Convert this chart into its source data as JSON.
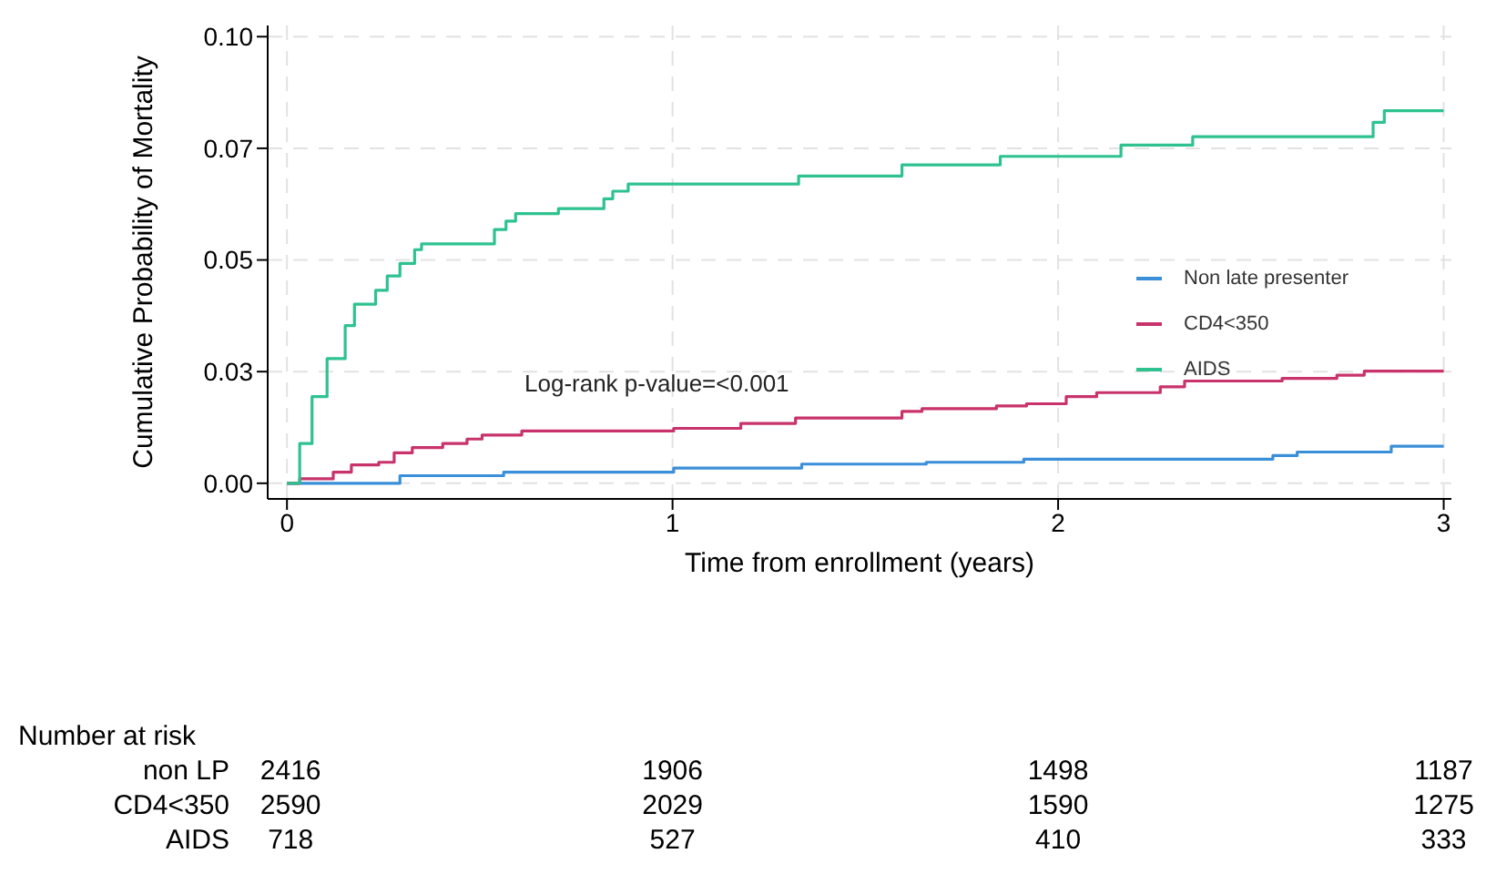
{
  "chart_data": {
    "type": "step",
    "ylabel": "Cumulative Probability of Mortality",
    "xlabel": "Time from enrollment (years)",
    "xlim": [
      -0.05,
      3.02
    ],
    "xticks": [
      0,
      1,
      2,
      3
    ],
    "ylim": [
      -0.0035,
      0.1025
    ],
    "yticks": [
      {
        "value": 0,
        "label": "0.00"
      },
      {
        "value": 0.025,
        "label": "0.03"
      },
      {
        "value": 0.05,
        "label": "0.05"
      },
      {
        "value": 0.075,
        "label": "0.07"
      },
      {
        "value": 0.1,
        "label": "0.10"
      }
    ],
    "grid": true,
    "legend": "right",
    "series": [
      {
        "name": "Non late presenter",
        "color": "#3a8fd9",
        "x": [
          0,
          0.293,
          0.562,
          1.003,
          1.335,
          1.658,
          1.911,
          2.557,
          2.62,
          2.864,
          3.0
        ],
        "values": [
          0,
          0.0017,
          0.0025,
          0.0034,
          0.0043,
          0.0047,
          0.0054,
          0.0062,
          0.007,
          0.0083,
          0.0083
        ]
      },
      {
        "name": "CD4<350",
        "color": "#c8336b",
        "x": [
          0,
          0.033,
          0.12,
          0.167,
          0.238,
          0.278,
          0.325,
          0.404,
          0.467,
          0.506,
          0.609,
          1.003,
          1.177,
          1.319,
          1.595,
          1.647,
          1.84,
          1.918,
          2.021,
          2.1,
          2.265,
          2.328,
          2.581,
          2.723,
          2.794,
          3.0
        ],
        "values": [
          0,
          0.001,
          0.0025,
          0.0041,
          0.0047,
          0.0068,
          0.008,
          0.0089,
          0.0099,
          0.0108,
          0.0117,
          0.0123,
          0.0134,
          0.0146,
          0.0161,
          0.0167,
          0.0173,
          0.0178,
          0.0194,
          0.0203,
          0.0216,
          0.0229,
          0.0235,
          0.0242,
          0.0251,
          0.0251
        ]
      },
      {
        "name": "AIDS",
        "color": "#2ec28f",
        "x": [
          0,
          0.033,
          0.065,
          0.104,
          0.151,
          0.175,
          0.23,
          0.26,
          0.293,
          0.331,
          0.349,
          0.538,
          0.568,
          0.593,
          0.704,
          0.822,
          0.845,
          0.885,
          1.327,
          1.595,
          1.85,
          2.163,
          2.349,
          2.817,
          2.846,
          3.0
        ],
        "values": [
          0,
          0.0089,
          0.0194,
          0.0279,
          0.0353,
          0.0401,
          0.0432,
          0.0464,
          0.0492,
          0.0523,
          0.0536,
          0.0568,
          0.0587,
          0.0604,
          0.0615,
          0.0637,
          0.0654,
          0.067,
          0.0688,
          0.0713,
          0.0732,
          0.0757,
          0.0776,
          0.0808,
          0.0834,
          0.0834
        ]
      }
    ],
    "annotations": [
      "Log-rank p-value=<0.001",
      "Number at risk",
      "non LP",
      "2416",
      "1906",
      "1498",
      "1187",
      "CD4<350",
      "2590",
      "2029",
      "1590",
      "1275",
      "AIDS",
      "718",
      "527",
      "410",
      "333"
    ]
  }
}
